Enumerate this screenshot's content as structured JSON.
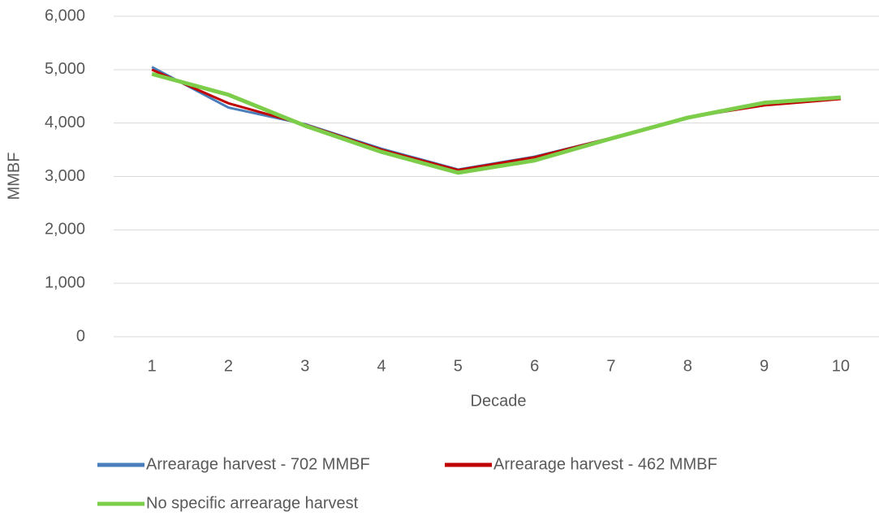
{
  "chart_data": {
    "type": "line",
    "x_label": "Decade",
    "y_label": "MMBF",
    "categories": [
      "1",
      "2",
      "3",
      "4",
      "5",
      "6",
      "7",
      "8",
      "9",
      "10"
    ],
    "series": [
      {
        "name": "Arrearage harvest - 702 MMBF",
        "color": "#4a7ebb",
        "values": [
          5050,
          4290,
          3980,
          3520,
          3130,
          3370,
          3720,
          4100,
          4340,
          4460
        ]
      },
      {
        "name": "Arrearage harvest - 462 MMBF",
        "color": "#c00000",
        "values": [
          5000,
          4370,
          3970,
          3500,
          3120,
          3360,
          3720,
          4110,
          4330,
          4450
        ]
      },
      {
        "name": "No specific arrearage harvest",
        "color": "#7ccd4a",
        "values": [
          4920,
          4530,
          3950,
          3460,
          3070,
          3300,
          3710,
          4100,
          4380,
          4480
        ]
      }
    ],
    "ylim": [
      0,
      6000
    ],
    "yticks": [
      0,
      {
        "value": 1000,
        "label": "1,000"
      },
      {
        "value": 2000,
        "label": "2,000"
      },
      {
        "value": 3000,
        "label": "3,000"
      },
      {
        "value": 4000,
        "label": "4,000"
      },
      {
        "value": 5000,
        "label": "5,000"
      },
      {
        "value": 6000,
        "label": "6,000"
      }
    ],
    "grid": true,
    "legend": "bottom"
  }
}
